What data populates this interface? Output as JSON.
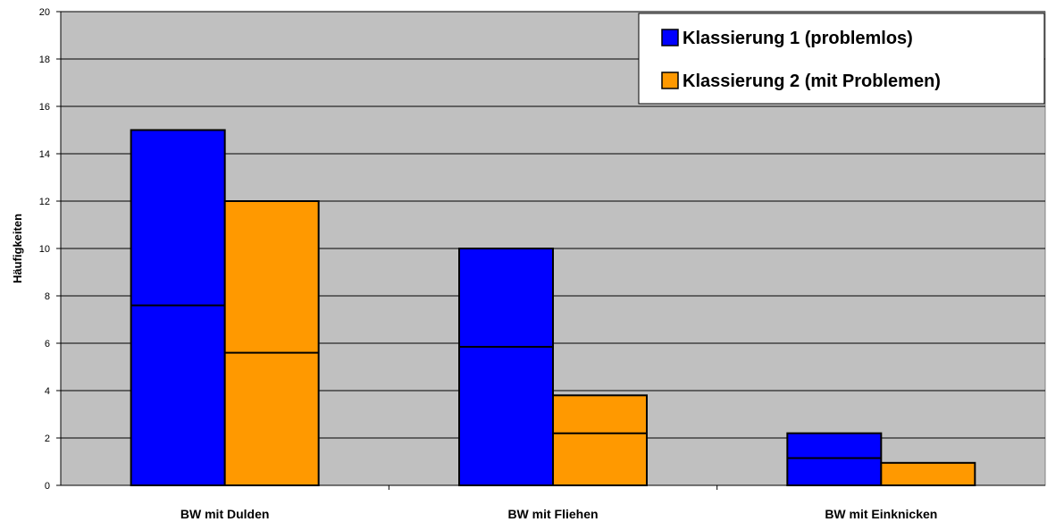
{
  "chart_data": {
    "type": "bar",
    "title": "",
    "xlabel": "",
    "ylabel": "Häufigkeiten",
    "ylim": [
      0,
      20
    ],
    "yticks": [
      0,
      2,
      4,
      6,
      8,
      10,
      12,
      14,
      16,
      18,
      20
    ],
    "categories": [
      "BW mit Dulden",
      "BW mit Fliehen",
      "BW mit Einknicken"
    ],
    "series": [
      {
        "name": "Klassierung 1 (problemlos)",
        "color": "#0000FF",
        "values": [
          15,
          10,
          2.2
        ],
        "inner_line": [
          7.6,
          5.85,
          1.15
        ]
      },
      {
        "name": "Klassierung 2 (mit Problemen)",
        "color": "#FF9900",
        "values": [
          12,
          3.8,
          0.95
        ],
        "inner_line": [
          5.6,
          2.2,
          null
        ]
      }
    ],
    "plot_background": "#C0C0C0",
    "grid": true,
    "legend_position": "top-right"
  }
}
